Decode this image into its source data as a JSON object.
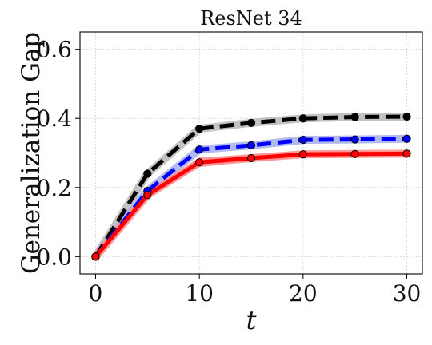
{
  "chart_data": {
    "type": "line",
    "title": "ResNet 34",
    "xlabel": "t",
    "ylabel": "Generalization Gap",
    "x": [
      0,
      5,
      10,
      15,
      20,
      25,
      30
    ],
    "xticks": [
      0,
      10,
      20,
      30
    ],
    "xtick_labels": [
      "0",
      "10",
      "20",
      "30"
    ],
    "yticks": [
      0.0,
      0.2,
      0.4,
      0.6
    ],
    "ytick_labels": [
      "0.0",
      "0.2",
      "0.4",
      "0.6"
    ],
    "xlim": [
      -1.5,
      31.5
    ],
    "ylim": [
      -0.05,
      0.65
    ],
    "grid": true,
    "series": [
      {
        "color": "#000000",
        "line_style": "dashed",
        "marker": "circle",
        "band_color": "#bbbbbb",
        "values": [
          0.0,
          0.24,
          0.37,
          0.387,
          0.4,
          0.404,
          0.405
        ]
      },
      {
        "color": "#0000ff",
        "line_style": "dashed",
        "marker": "circle",
        "band_color": "#aab4ee",
        "values": [
          0.0,
          0.19,
          0.31,
          0.322,
          0.338,
          0.339,
          0.341
        ]
      },
      {
        "color": "#ff0000",
        "line_style": "solid",
        "marker": "circle",
        "band_color": "#ff9090",
        "values": [
          0.0,
          0.178,
          0.273,
          0.285,
          0.296,
          0.297,
          0.298
        ],
        "band": [
          0.008,
          0.009,
          0.014,
          0.01,
          0.008,
          0.008,
          0.008
        ]
      }
    ]
  }
}
